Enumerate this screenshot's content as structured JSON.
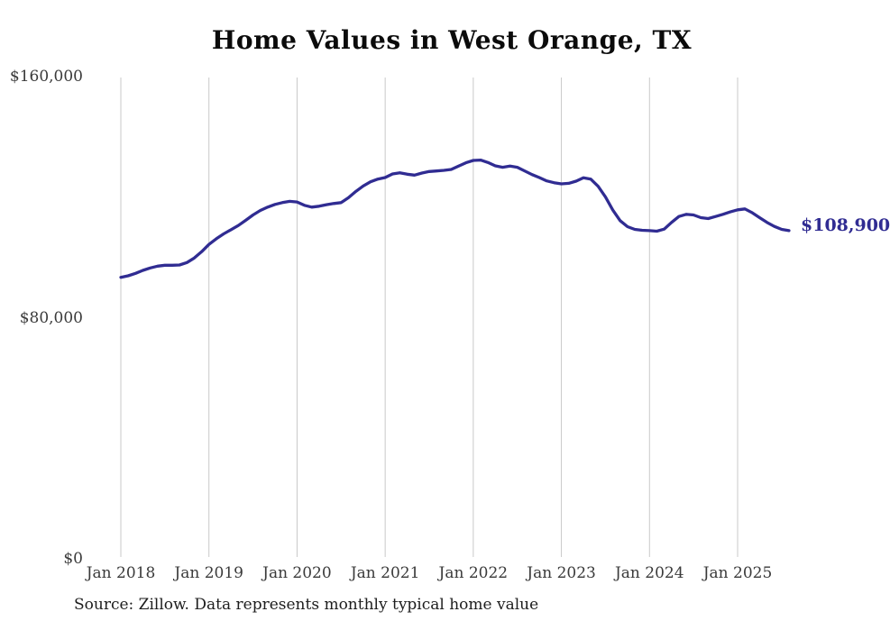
{
  "title": "Home Values in West Orange, TX",
  "source_note": "Source: Zillow. Data represents monthly typical home value",
  "end_label": "$108,900",
  "colors": {
    "line": "#302c92",
    "grid": "#c9c9c9",
    "axis_text": "#3a3a3a",
    "title_text": "#0b0b0b",
    "end_label_text": "#302c92",
    "source_text": "#1d1d1d",
    "background": "#ffffff"
  },
  "chart_data": {
    "type": "line",
    "title": "Home Values in West Orange, TX",
    "xlabel": "",
    "ylabel": "",
    "unit": "USD",
    "x_start_month": "Jan 2018",
    "x_end_month": "Aug 2025",
    "ylim": [
      0,
      160000
    ],
    "grid": "vertical-only",
    "legend": "none",
    "y_ticks": [
      {
        "value": 0,
        "label": "$0"
      },
      {
        "value": 80000,
        "label": "$80,000"
      },
      {
        "value": 160000,
        "label": "$160,000"
      }
    ],
    "x_ticks": [
      {
        "month_index": 0,
        "label": "Jan 2018"
      },
      {
        "month_index": 12,
        "label": "Jan 2019"
      },
      {
        "month_index": 24,
        "label": "Jan 2020"
      },
      {
        "month_index": 36,
        "label": "Jan 2021"
      },
      {
        "month_index": 48,
        "label": "Jan 2022"
      },
      {
        "month_index": 60,
        "label": "Jan 2023"
      },
      {
        "month_index": 72,
        "label": "Jan 2024"
      },
      {
        "month_index": 84,
        "label": "Jan 2025"
      }
    ],
    "series": [
      {
        "name": "Monthly typical home value",
        "last_value": 108900,
        "last_value_label": "$108,900",
        "values": [
          93400,
          93900,
          94700,
          95700,
          96500,
          97100,
          97400,
          97400,
          97500,
          98300,
          99800,
          101900,
          104300,
          106200,
          107800,
          109200,
          110600,
          112300,
          114100,
          115600,
          116700,
          117600,
          118200,
          118600,
          118400,
          117300,
          116700,
          117000,
          117500,
          117900,
          118200,
          119800,
          121900,
          123700,
          125100,
          126000,
          126500,
          127700,
          128100,
          127600,
          127300,
          128000,
          128500,
          128700,
          128900,
          129200,
          130300,
          131400,
          132200,
          132300,
          131500,
          130400,
          129900,
          130300,
          129900,
          128700,
          127500,
          126500,
          125400,
          124800,
          124400,
          124600,
          125300,
          126400,
          126000,
          123600,
          120100,
          115700,
          112200,
          110200,
          109300,
          109000,
          108900,
          108700,
          109400,
          111600,
          113600,
          114300,
          114100,
          113200,
          112900,
          113600,
          114300,
          115100,
          115800,
          116100,
          114800,
          113200,
          111600,
          110300,
          109300,
          108900
        ]
      }
    ]
  }
}
